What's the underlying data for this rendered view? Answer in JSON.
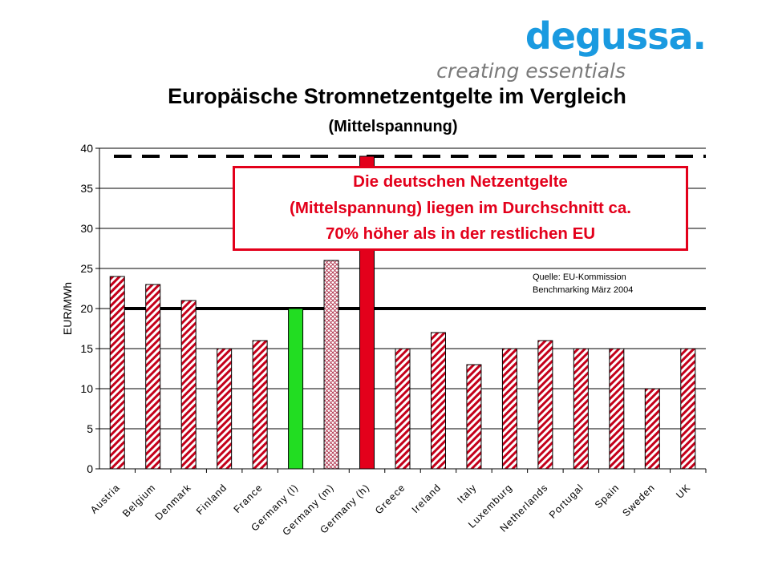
{
  "logo": {
    "wordmark": "degussa.",
    "tagline": "creating essentials",
    "brand_color": "#1a9ae0"
  },
  "chart_data": {
    "type": "bar",
    "title": "Europäische Stromnetzentgelte im Vergleich",
    "subtitle": "(Mittelspannung)",
    "ylabel": "EUR/MWh",
    "xlabel": "",
    "ylim": [
      0,
      40
    ],
    "yticks": [
      0,
      5,
      10,
      15,
      20,
      25,
      30,
      35,
      40
    ],
    "grid": true,
    "categories": [
      "Austria",
      "Belgium",
      "Denmark",
      "Finland",
      "France",
      "Germany (l)",
      "Germany (m)",
      "Germany (h)",
      "Greece",
      "Ireland",
      "Italy",
      "Luxemburg",
      "Netherlands",
      "Portugal",
      "Spain",
      "Sweden",
      "UK"
    ],
    "values": [
      24,
      23,
      21,
      15,
      16,
      20,
      26,
      39,
      15,
      17,
      13,
      15,
      16,
      15,
      15,
      10,
      15
    ],
    "bar_styles": [
      "hatch",
      "hatch",
      "hatch",
      "hatch",
      "hatch",
      "green",
      "crosshatch",
      "red",
      "hatch",
      "hatch",
      "hatch",
      "hatch",
      "hatch",
      "hatch",
      "hatch",
      "hatch",
      "hatch"
    ],
    "reference_lines": [
      {
        "value": 39,
        "style": "dashed"
      },
      {
        "value": 20,
        "style": "solid"
      }
    ],
    "annotations": {
      "callout": "Die deutschen Netzentgelte\n(Mittelspannung) liegen im Durchschnitt ca.\n70% höher als in der restlichen EU",
      "source_line1": "Quelle: EU-Kommission",
      "source_line2": "Benchmarking März 2004"
    },
    "colors": {
      "hatch": "#c4001a",
      "green": "#22dd22",
      "red": "#e3001b",
      "crosshatch": "#b0304a"
    }
  }
}
